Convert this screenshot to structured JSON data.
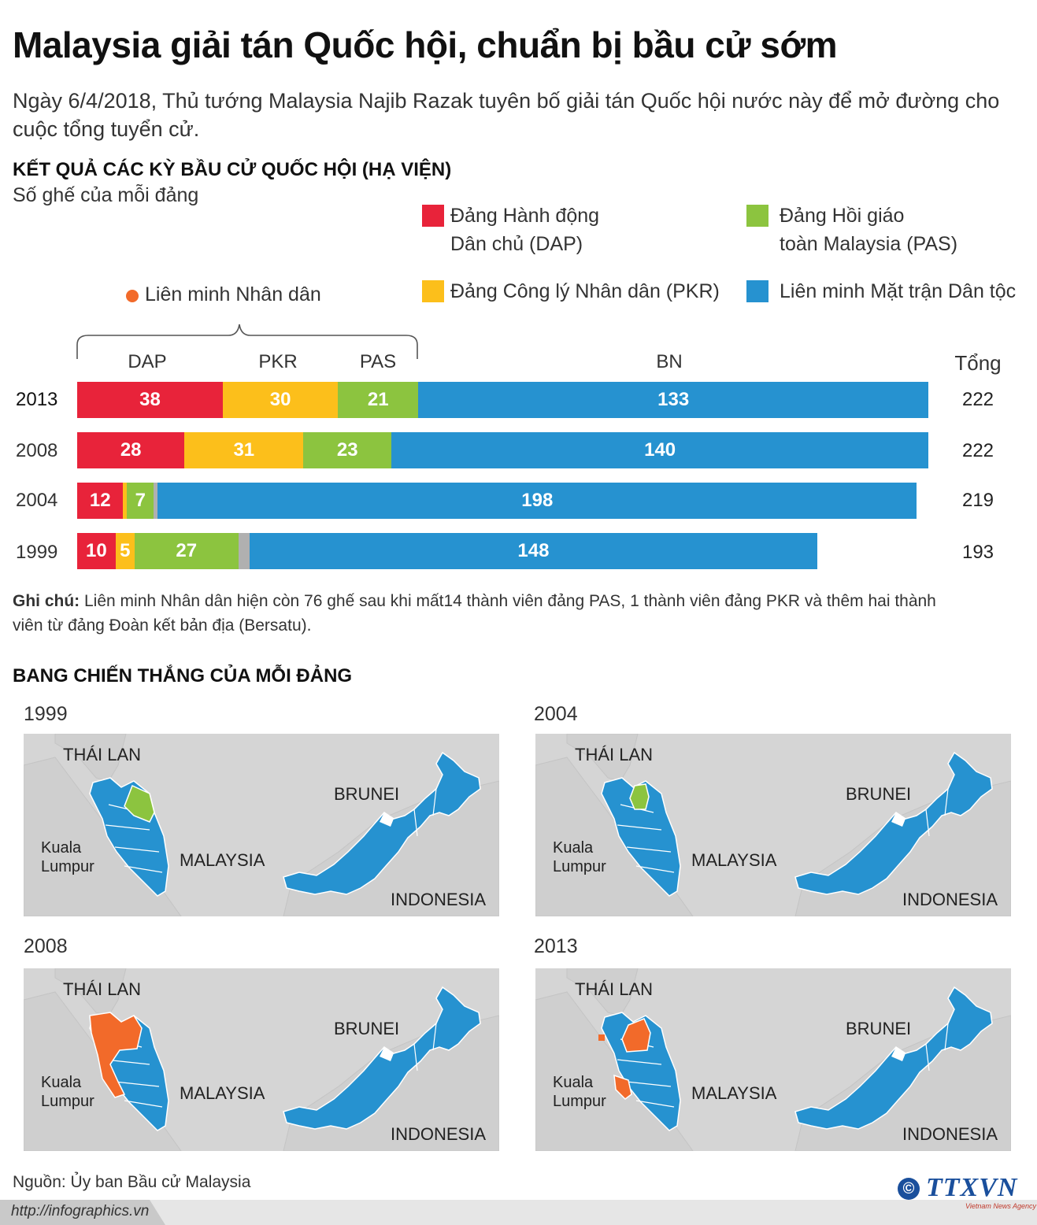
{
  "title": "Malaysia giải tán Quốc hội, chuẩn bị bầu cử sớm",
  "intro": "Ngày 6/4/2018, Thủ tướng Malaysia Najib Razak tuyên bố giải tán Quốc hội nước này để mở đường cho cuộc tổng tuyển cử.",
  "section1_title": "KẾT QUẢ CÁC KỲ BẦU CỬ QUỐC HỘI (HẠ VIỆN)",
  "section1_subtitle": "Số ghế của mỗi đảng",
  "legend": {
    "dap_line1": "Đảng Hành động",
    "dap_line2": "Dân chủ (DAP)",
    "pas_line1": "Đảng Hồi giáo",
    "pas_line2": "toàn Malaysia (PAS)",
    "pkr": "Đảng Công lý Nhân dân (PKR)",
    "bn": "Liên minh Mặt trận Dân tộc",
    "alliance": "Liên minh Nhân dân"
  },
  "colors": {
    "dap": "#e8233a",
    "pkr": "#fcbf1b",
    "pas": "#8cc43f",
    "bn": "#2692d0",
    "alliance": "#f26a2a",
    "other": "#b0b0b0",
    "map_bg": "#d5d5d5"
  },
  "chart_data": {
    "type": "bar",
    "orientation": "horizontal-stacked",
    "column_headers": [
      "DAP",
      "PKR",
      "PAS",
      "BN"
    ],
    "total_header": "Tổng",
    "categories": [
      "2013",
      "2008",
      "2004",
      "1999"
    ],
    "series": [
      {
        "name": "DAP",
        "values": [
          38,
          28,
          12,
          10
        ]
      },
      {
        "name": "PKR",
        "values": [
          30,
          31,
          1,
          5
        ]
      },
      {
        "name": "PAS",
        "values": [
          21,
          23,
          7,
          27
        ]
      },
      {
        "name": "other",
        "values": [
          0,
          0,
          1,
          3
        ]
      },
      {
        "name": "BN",
        "values": [
          133,
          140,
          198,
          148
        ]
      }
    ],
    "totals": [
      222,
      222,
      219,
      193
    ],
    "label_texts": [
      [
        "38",
        "30",
        "21",
        "",
        "133"
      ],
      [
        "28",
        "31",
        "23",
        "",
        "140"
      ],
      [
        "12",
        "",
        "7",
        "",
        "198"
      ],
      [
        "10",
        "5",
        "27",
        "",
        "148"
      ]
    ],
    "xlim": [
      0,
      222
    ]
  },
  "note_label": "Ghi chú:",
  "note_text": " Liên minh Nhân dân hiện còn 76 ghế sau khi mất14 thành viên đảng PAS, 1 thành viên đảng PKR và thêm hai thành viên từ đảng Đoàn kết bản địa (Bersatu).",
  "section2_title": "BANG CHIẾN THẮNG CỦA MỖI ĐẢNG",
  "maps": [
    {
      "year": "1999",
      "highlight": "pas"
    },
    {
      "year": "2004",
      "highlight": "pas"
    },
    {
      "year": "2008",
      "highlight": "alliance"
    },
    {
      "year": "2013",
      "highlight": "alliance"
    }
  ],
  "map_labels": {
    "thailand": "THÁI LAN",
    "brunei": "BRUNEI",
    "malaysia": "MALAYSIA",
    "indonesia": "INDONESIA",
    "kl1": "Kuala",
    "kl2": "Lumpur"
  },
  "source": "Nguồn: Ủy ban Bầu cử Malaysia",
  "url": "http://infographics.vn",
  "logo": {
    "copyright": "©",
    "name": "TTXVN",
    "tagline": "Vietnam News Agency"
  }
}
